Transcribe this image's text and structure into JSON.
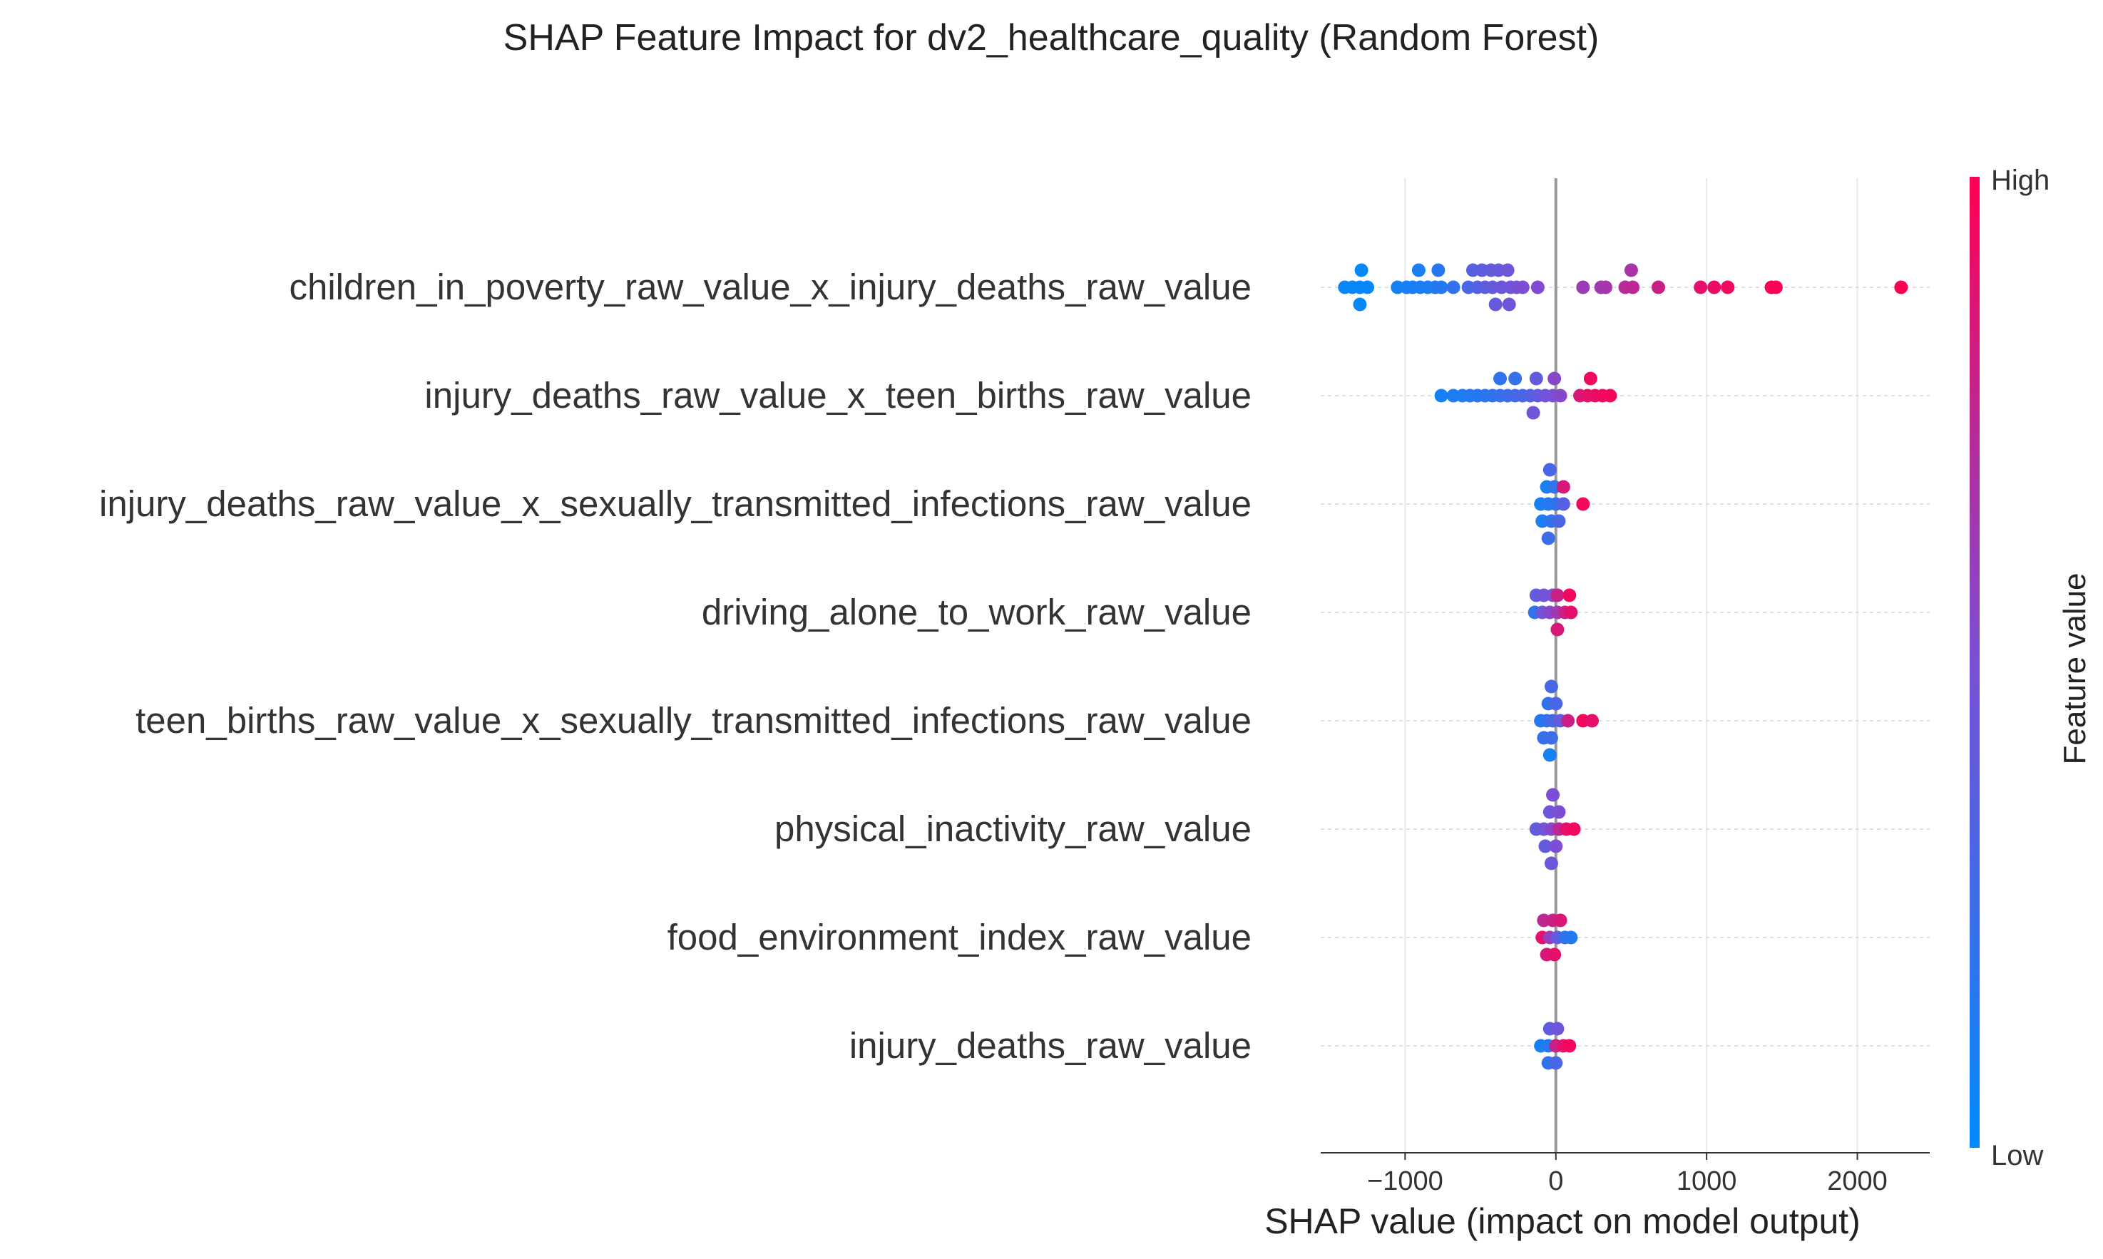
{
  "chart_data": {
    "type": "scatter",
    "title": "SHAP Feature Impact for dv2_healthcare_quality (Random Forest)",
    "xlabel": "SHAP value (impact on model output)",
    "xlim": [
      -1560,
      2480
    ],
    "xticks": [
      -1000,
      0,
      1000,
      2000
    ],
    "xtick_labels": [
      "−1000",
      "0",
      "1000",
      "2000"
    ],
    "colorbar": {
      "high_label": "High",
      "low_label": "Low",
      "label": "Feature value",
      "low_color": "#008bfb",
      "high_color": "#ff0051"
    },
    "grid": true,
    "series": [
      {
        "name": "children_in_poverty_raw_value_x_injury_deaths_raw_value",
        "points": [
          [
            -1290,
            1,
            0.02
          ],
          [
            -1300,
            0,
            0.02
          ],
          [
            -1400,
            0,
            0.03
          ],
          [
            -1350,
            0,
            0.03
          ],
          [
            -1250,
            0,
            0.03
          ],
          [
            -1300,
            -1,
            0.02
          ],
          [
            -910,
            1,
            0.1
          ],
          [
            -780,
            1,
            0.15
          ],
          [
            -900,
            0,
            0.1
          ],
          [
            -1050,
            0,
            0.08
          ],
          [
            -990,
            0,
            0.09
          ],
          [
            -950,
            0,
            0.1
          ],
          [
            -850,
            0,
            0.12
          ],
          [
            -800,
            0,
            0.13
          ],
          [
            -760,
            0,
            0.15
          ],
          [
            -680,
            0,
            0.2
          ],
          [
            -550,
            1,
            0.35
          ],
          [
            -490,
            1,
            0.38
          ],
          [
            -430,
            1,
            0.4
          ],
          [
            -380,
            1,
            0.42
          ],
          [
            -320,
            1,
            0.45
          ],
          [
            -580,
            0,
            0.3
          ],
          [
            -520,
            0,
            0.33
          ],
          [
            -470,
            0,
            0.38
          ],
          [
            -420,
            0,
            0.4
          ],
          [
            -360,
            0,
            0.44
          ],
          [
            -300,
            0,
            0.46
          ],
          [
            -260,
            0,
            0.48
          ],
          [
            -220,
            0,
            0.5
          ],
          [
            -120,
            0,
            0.52
          ],
          [
            -400,
            -1,
            0.42
          ],
          [
            -310,
            -1,
            0.45
          ],
          [
            500,
            1,
            0.68
          ],
          [
            180,
            0,
            0.62
          ],
          [
            300,
            0,
            0.64
          ],
          [
            330,
            0,
            0.66
          ],
          [
            460,
            0,
            0.72
          ],
          [
            510,
            0,
            0.75
          ],
          [
            680,
            0,
            0.8
          ],
          [
            960,
            0,
            0.9
          ],
          [
            1050,
            0,
            0.93
          ],
          [
            1140,
            0,
            0.95
          ],
          [
            1430,
            0,
            0.98
          ],
          [
            1460,
            0,
            0.99
          ],
          [
            2290,
            0,
            1.0
          ]
        ]
      },
      {
        "name": "injury_deaths_raw_value_x_teen_births_raw_value",
        "points": [
          [
            -370,
            1,
            0.2
          ],
          [
            -270,
            1,
            0.22
          ],
          [
            -130,
            1,
            0.4
          ],
          [
            -10,
            1,
            0.55
          ],
          [
            230,
            1,
            0.95
          ],
          [
            -760,
            0,
            0.08
          ],
          [
            -680,
            0,
            0.12
          ],
          [
            -620,
            0,
            0.12
          ],
          [
            -570,
            0,
            0.14
          ],
          [
            -520,
            0,
            0.15
          ],
          [
            -470,
            0,
            0.18
          ],
          [
            -420,
            0,
            0.2
          ],
          [
            -370,
            0,
            0.22
          ],
          [
            -320,
            0,
            0.25
          ],
          [
            -270,
            0,
            0.28
          ],
          [
            -220,
            0,
            0.3
          ],
          [
            -170,
            0,
            0.35
          ],
          [
            -120,
            0,
            0.4
          ],
          [
            -70,
            0,
            0.45
          ],
          [
            -20,
            0,
            0.5
          ],
          [
            30,
            0,
            0.55
          ],
          [
            160,
            0,
            0.85
          ],
          [
            210,
            0,
            0.9
          ],
          [
            260,
            0,
            0.92
          ],
          [
            310,
            0,
            0.94
          ],
          [
            360,
            0,
            0.96
          ],
          [
            -150,
            -1,
            0.45
          ]
        ]
      },
      {
        "name": "injury_deaths_raw_value_x_sexually_transmitted_infections_raw_value",
        "points": [
          [
            -40,
            2,
            0.3
          ],
          [
            -60,
            1,
            0.1
          ],
          [
            -10,
            1,
            0.2
          ],
          [
            50,
            1,
            0.85
          ],
          [
            -100,
            0,
            0.1
          ],
          [
            -50,
            0,
            0.15
          ],
          [
            0,
            0,
            0.2
          ],
          [
            50,
            0,
            0.35
          ],
          [
            180,
            0,
            0.95
          ],
          [
            -90,
            -1,
            0.12
          ],
          [
            -30,
            -1,
            0.2
          ],
          [
            20,
            -1,
            0.3
          ],
          [
            -50,
            -2,
            0.25
          ]
        ]
      },
      {
        "name": "driving_alone_to_work_raw_value",
        "points": [
          [
            -130,
            1,
            0.4
          ],
          [
            -80,
            1,
            0.45
          ],
          [
            -20,
            1,
            0.5
          ],
          [
            10,
            1,
            0.8
          ],
          [
            90,
            1,
            0.95
          ],
          [
            -140,
            0,
            0.2
          ],
          [
            -90,
            0,
            0.45
          ],
          [
            -40,
            0,
            0.55
          ],
          [
            10,
            0,
            0.65
          ],
          [
            60,
            0,
            0.8
          ],
          [
            100,
            0,
            0.9
          ],
          [
            10,
            -1,
            0.85
          ]
        ]
      },
      {
        "name": "teen_births_raw_value_x_sexually_transmitted_infections_raw_value",
        "points": [
          [
            -30,
            2,
            0.3
          ],
          [
            -50,
            1,
            0.2
          ],
          [
            0,
            1,
            0.3
          ],
          [
            -100,
            0,
            0.15
          ],
          [
            -60,
            0,
            0.2
          ],
          [
            -20,
            0,
            0.3
          ],
          [
            30,
            0,
            0.4
          ],
          [
            80,
            0,
            0.8
          ],
          [
            180,
            0,
            0.95
          ],
          [
            240,
            0,
            0.9
          ],
          [
            -80,
            -1,
            0.2
          ],
          [
            -30,
            -1,
            0.25
          ],
          [
            -40,
            -2,
            0.1
          ]
        ]
      },
      {
        "name": "physical_inactivity_raw_value",
        "points": [
          [
            -20,
            2,
            0.5
          ],
          [
            -40,
            1,
            0.45
          ],
          [
            20,
            1,
            0.5
          ],
          [
            -130,
            0,
            0.4
          ],
          [
            -80,
            0,
            0.45
          ],
          [
            -30,
            0,
            0.55
          ],
          [
            20,
            0,
            0.75
          ],
          [
            70,
            0,
            0.9
          ],
          [
            120,
            0,
            0.95
          ],
          [
            -70,
            -1,
            0.4
          ],
          [
            0,
            -1,
            0.5
          ],
          [
            -30,
            -2,
            0.45
          ]
        ]
      },
      {
        "name": "food_environment_index_raw_value",
        "points": [
          [
            -80,
            1,
            0.75
          ],
          [
            -20,
            1,
            0.8
          ],
          [
            30,
            1,
            0.85
          ],
          [
            -90,
            0,
            0.9
          ],
          [
            -40,
            0,
            0.6
          ],
          [
            10,
            0,
            0.4
          ],
          [
            60,
            0,
            0.2
          ],
          [
            100,
            0,
            0.15
          ],
          [
            -60,
            -1,
            0.85
          ],
          [
            -10,
            -1,
            0.9
          ]
        ]
      },
      {
        "name": "injury_deaths_raw_value",
        "points": [
          [
            -40,
            1,
            0.4
          ],
          [
            10,
            1,
            0.45
          ],
          [
            -100,
            0,
            0.1
          ],
          [
            -50,
            0,
            0.15
          ],
          [
            0,
            0,
            0.8
          ],
          [
            50,
            0,
            0.9
          ],
          [
            90,
            0,
            0.95
          ],
          [
            -50,
            -1,
            0.2
          ],
          [
            0,
            -1,
            0.3
          ]
        ]
      }
    ]
  }
}
